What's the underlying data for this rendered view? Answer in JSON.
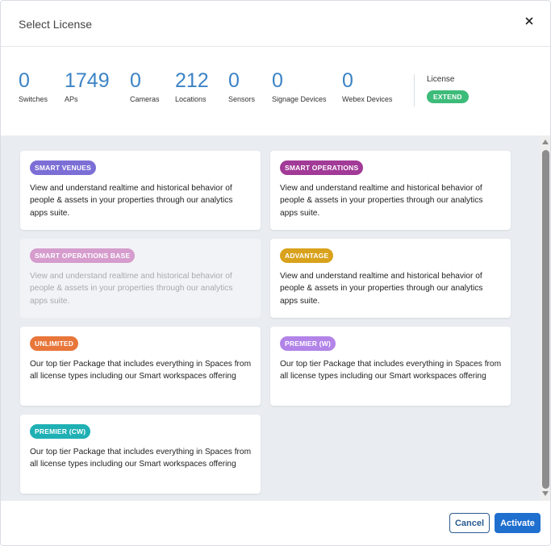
{
  "dialog": {
    "title": "Select License",
    "close_icon": "close-icon"
  },
  "stats": [
    {
      "value": "0",
      "label": "Switches"
    },
    {
      "value": "1749",
      "label": "APs"
    },
    {
      "value": "0",
      "label": "Cameras"
    },
    {
      "value": "212",
      "label": "Locations"
    },
    {
      "value": "0",
      "label": "Sensors"
    },
    {
      "value": "0",
      "label": "Signage Devices"
    },
    {
      "value": "0",
      "label": "Webex Devices"
    }
  ],
  "license": {
    "label": "License",
    "badge": "EXTEND",
    "badge_color": "#3dbb79"
  },
  "cards": [
    {
      "badge": "SMART VENUES",
      "color": "#7b6fd6",
      "disabled": false,
      "description": "View and understand realtime and historical behavior of people & assets in your properties through our analytics apps suite."
    },
    {
      "badge": "SMART OPERATIONS",
      "color": "#a23a97",
      "disabled": false,
      "description": "View and understand realtime and historical behavior of people & assets in your properties through our analytics apps suite."
    },
    {
      "badge": "SMART OPERATIONS BASE",
      "color": "#d59ccd",
      "disabled": true,
      "description": "View and understand realtime and historical behavior of people & assets in your properties through our analytics apps suite."
    },
    {
      "badge": "ADVANTAGE",
      "color": "#d9a21c",
      "disabled": false,
      "description": "View and understand realtime and historical behavior of people & assets in your properties through our analytics apps suite."
    },
    {
      "badge": "UNLIMITED",
      "color": "#e8763a",
      "disabled": false,
      "description": "Our top tier Package that includes everything in Spaces from all license types including our Smart workspaces offering"
    },
    {
      "badge": "PREMIER (W)",
      "color": "#b284e8",
      "disabled": false,
      "description": "Our top tier Package that includes everything in Spaces from all license types including our Smart workspaces offering"
    },
    {
      "badge": "PREMIER (CW)",
      "color": "#1fb0b4",
      "disabled": false,
      "description": "Our top tier Package that includes everything in Spaces from all license types including our Smart workspaces offering"
    }
  ],
  "footer": {
    "cancel_label": "Cancel",
    "activate_label": "Activate"
  }
}
